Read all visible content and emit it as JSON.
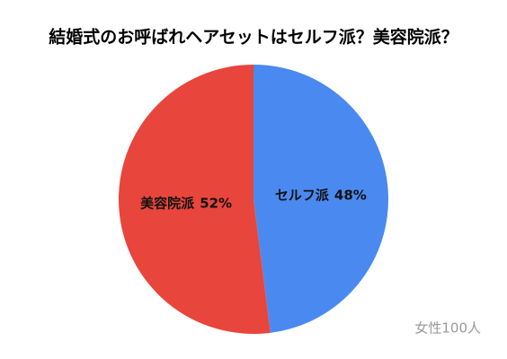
{
  "chart_data": {
    "type": "pie",
    "title": "結婚式のお呼ばれヘアセットはセルフ派？美容院派？",
    "categories": [
      "セルフ派",
      "美容院派"
    ],
    "values": [
      48,
      52
    ],
    "value_labels": [
      "48%",
      "52%"
    ],
    "colors": [
      "#4a8af0",
      "#e8453c"
    ],
    "annotation": "女性100人"
  }
}
